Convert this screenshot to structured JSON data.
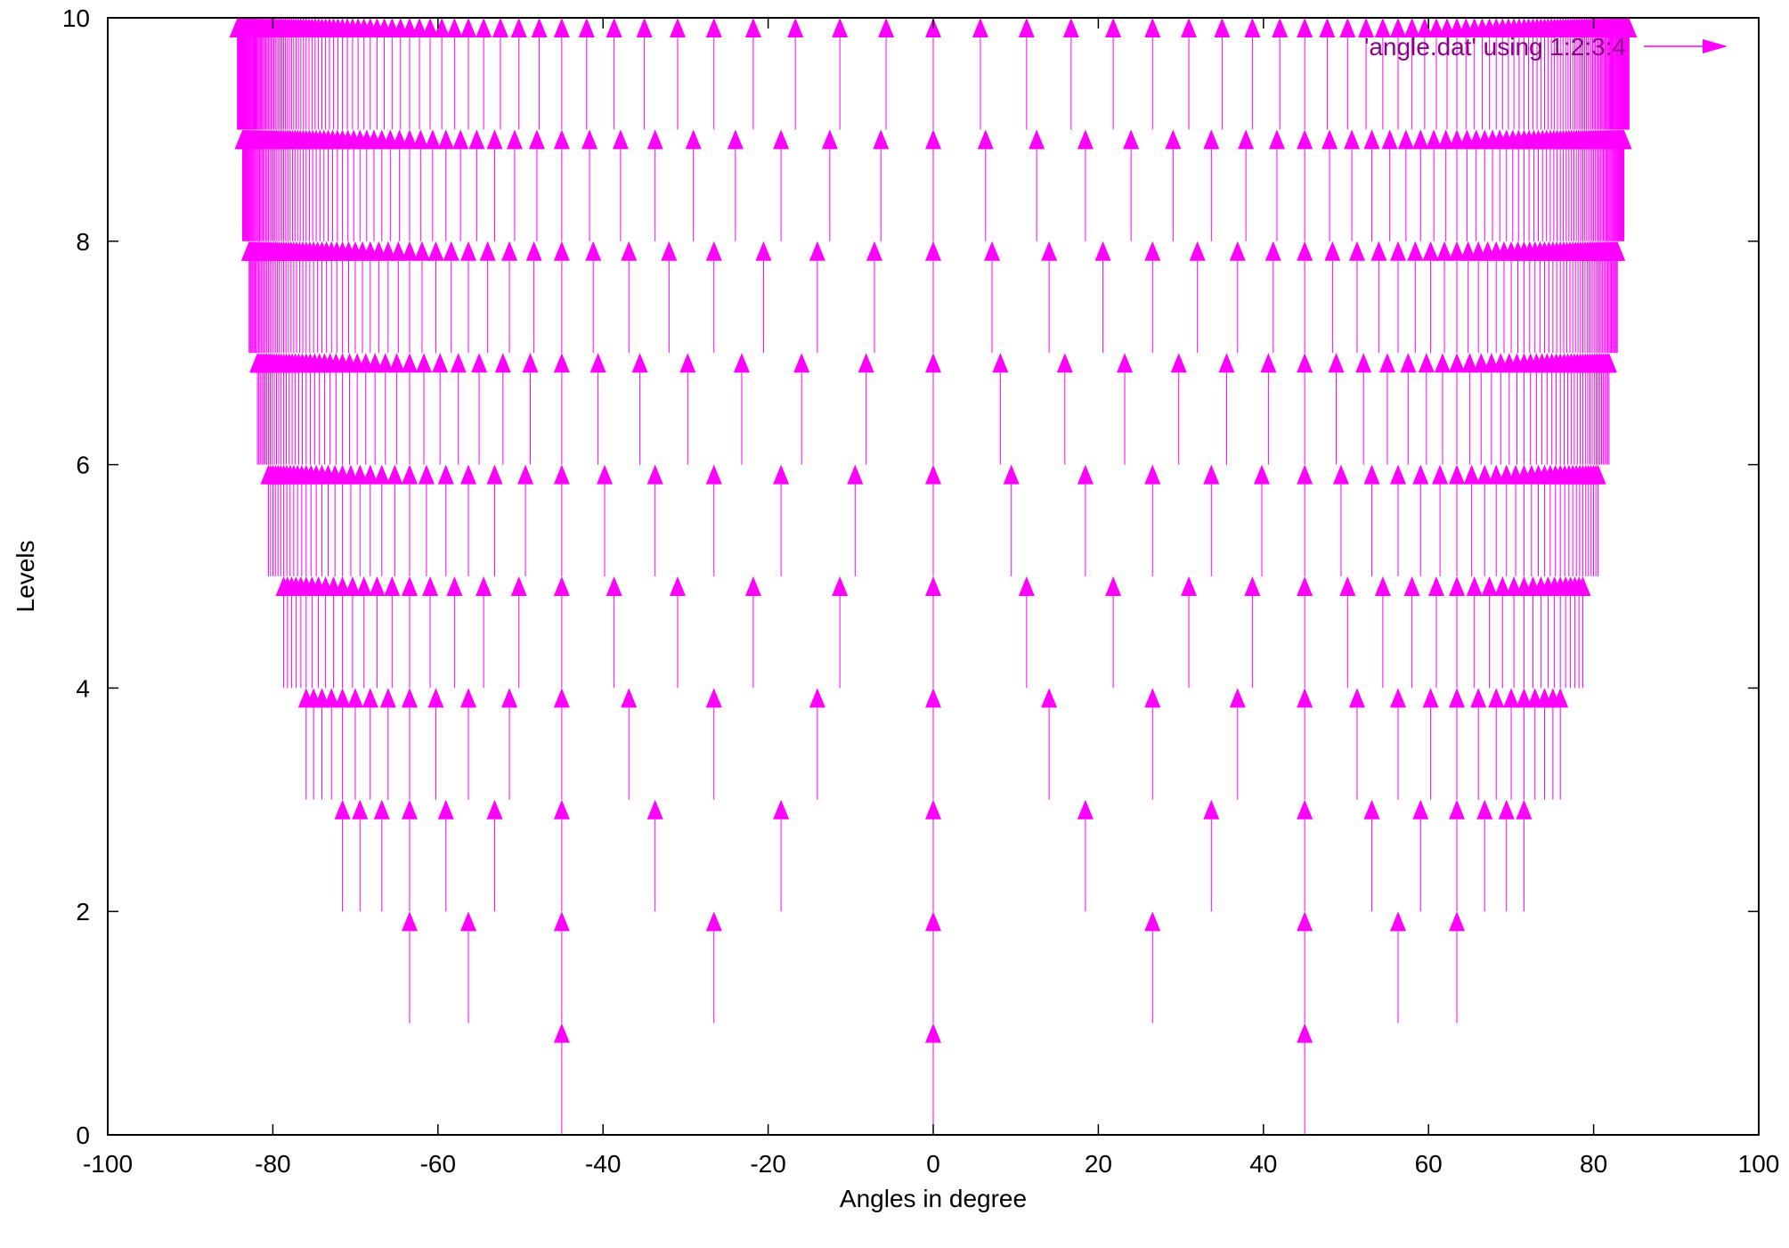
{
  "chart_data": {
    "type": "vector",
    "title": "",
    "xlabel": "Angles in degree",
    "ylabel": "Levels",
    "xlim": [
      -100,
      100
    ],
    "ylim": [
      0,
      10
    ],
    "x_ticks": [
      -100,
      -80,
      -60,
      -40,
      -20,
      0,
      20,
      40,
      60,
      80,
      100
    ],
    "y_ticks": [
      0,
      2,
      4,
      6,
      8,
      10
    ],
    "x_tick_labels": [
      "-100",
      "-80",
      "-60",
      "-40",
      "-20",
      "0",
      "20",
      "40",
      "60",
      "80",
      "100"
    ],
    "y_tick_labels": [
      "0",
      "2",
      "4",
      "6",
      "8",
      "10"
    ],
    "grid": false,
    "legend_position": "top-right",
    "series": [
      {
        "name": "'angle.dat' using 1:2:3:4",
        "color": "#ff00ff",
        "dx": 0,
        "dy": 1,
        "description_levels": [
          1,
          2,
          3,
          4,
          5,
          6,
          7,
          8,
          9,
          10
        ],
        "level_denominators": [
          1,
          2,
          3,
          4,
          5,
          6,
          7,
          8,
          9,
          10
        ]
      }
    ]
  }
}
